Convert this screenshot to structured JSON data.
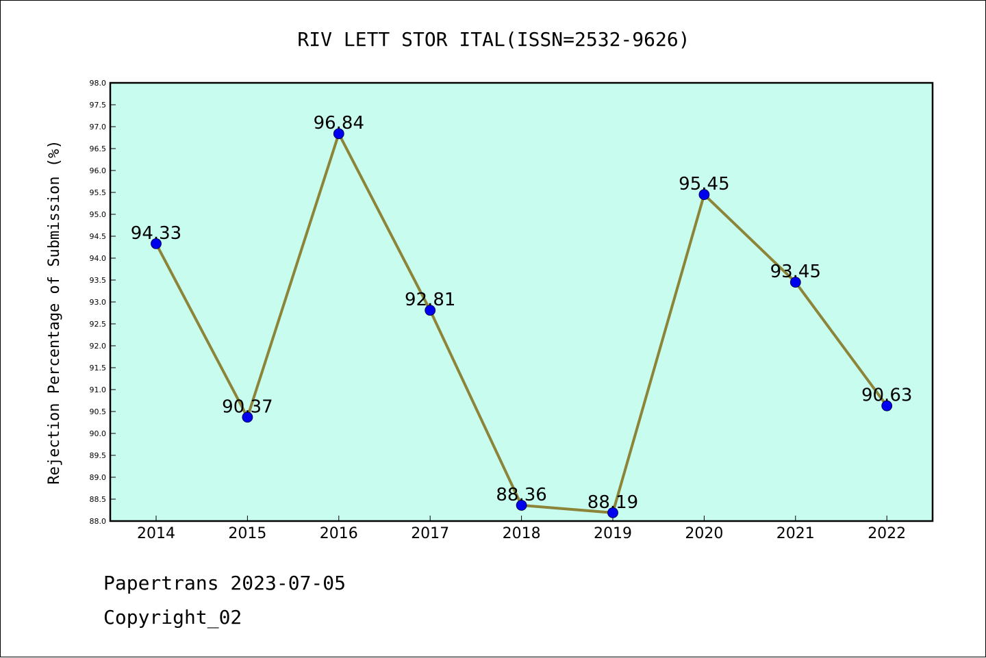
{
  "chart_data": {
    "type": "line",
    "title": "RIV LETT STOR ITAL(ISSN=2532-9626)",
    "ylabel": "Rejection Percentage of Submission (%)",
    "xlabel": "",
    "categories": [
      "2014",
      "2015",
      "2016",
      "2017",
      "2018",
      "2019",
      "2020",
      "2021",
      "2022"
    ],
    "values": [
      94.33,
      90.37,
      96.84,
      92.81,
      88.36,
      88.19,
      95.45,
      93.45,
      90.63
    ],
    "data_labels": [
      "94.33",
      "90.37",
      "96.84",
      "92.81",
      "88.36",
      "88.19",
      "95.45",
      "93.45",
      "90.63"
    ],
    "ylim": [
      88.0,
      98.0
    ],
    "ytick_step": 0.5,
    "grid": false,
    "colors": {
      "plot_background": "#c8fcee",
      "line": "#8b8439",
      "marker": "#0000ee",
      "axis": "#000000"
    }
  },
  "footer": {
    "line1": "Papertrans 2023-07-05",
    "line2": "Copyright_02"
  }
}
